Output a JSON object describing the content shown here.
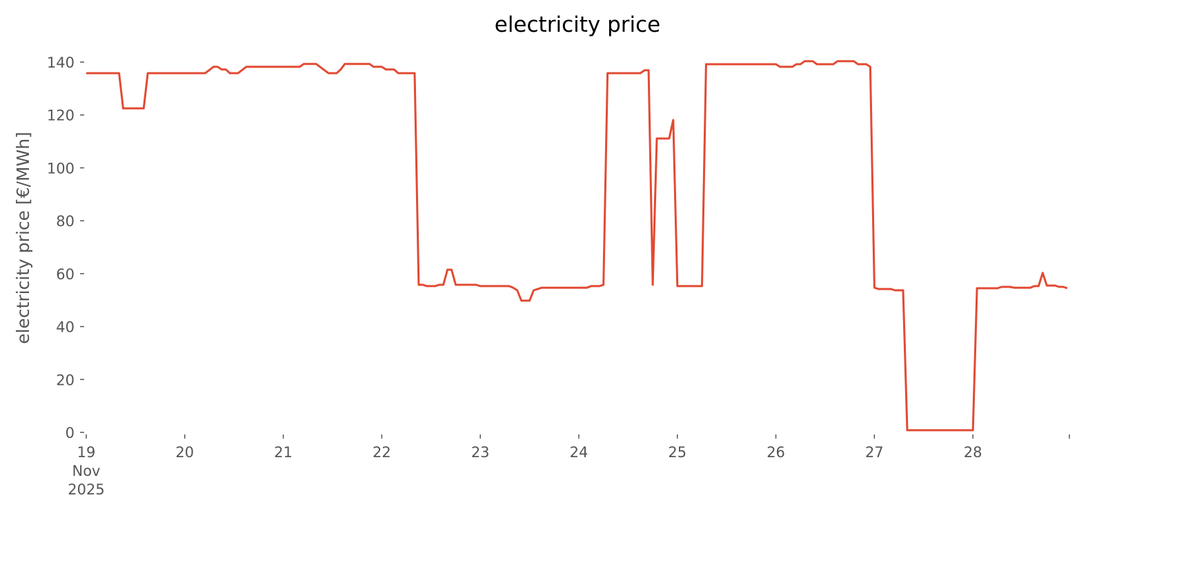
{
  "chart_data": {
    "type": "line",
    "title": "electricity price",
    "xlabel": "",
    "ylabel": "electricity price [€/MWh]",
    "ylim": [
      0,
      140
    ],
    "xlim": [
      "2025-11-19T00:00",
      "2025-11-28T23:00"
    ],
    "grid": false,
    "yticks": [
      "0",
      "20",
      "40",
      "60",
      "80",
      "100",
      "120",
      "140"
    ],
    "xticks": [
      {
        "date": "2025-11-19T00:00",
        "lines": [
          "19",
          "Nov",
          "2025"
        ]
      },
      {
        "date": "2025-11-20T00:00",
        "lines": [
          "20"
        ]
      },
      {
        "date": "2025-11-21T00:00",
        "lines": [
          "21"
        ]
      },
      {
        "date": "2025-11-22T00:00",
        "lines": [
          "22"
        ]
      },
      {
        "date": "2025-11-23T00:00",
        "lines": [
          "23"
        ]
      },
      {
        "date": "2025-11-24T00:00",
        "lines": [
          "24"
        ]
      },
      {
        "date": "2025-11-25T00:00",
        "lines": [
          "25"
        ]
      },
      {
        "date": "2025-11-26T00:00",
        "lines": [
          "26"
        ]
      },
      {
        "date": "2025-11-27T00:00",
        "lines": [
          "27"
        ]
      },
      {
        "date": "2025-11-28T00:00",
        "lines": [
          "28"
        ]
      }
    ],
    "series": [
      {
        "color": "#E24A33",
        "x": [
          "2025-11-19T00:00",
          "2025-11-19T08:00",
          "2025-11-19T09:00",
          "2025-11-19T14:00",
          "2025-11-19T15:00",
          "2025-11-20T05:00",
          "2025-11-20T07:00",
          "2025-11-20T08:00",
          "2025-11-20T09:00",
          "2025-11-20T10:00",
          "2025-11-20T11:00",
          "2025-11-20T13:00",
          "2025-11-20T15:00",
          "2025-11-21T04:00",
          "2025-11-21T05:00",
          "2025-11-21T08:00",
          "2025-11-21T11:00",
          "2025-11-21T13:00",
          "2025-11-21T14:00",
          "2025-11-21T15:00",
          "2025-11-21T21:00",
          "2025-11-21T22:00",
          "2025-11-22T00:00",
          "2025-11-22T01:00",
          "2025-11-22T03:00",
          "2025-11-22T04:00",
          "2025-11-22T08:00",
          "2025-11-22T09:00",
          "2025-11-22T10:00",
          "2025-11-22T11:00",
          "2025-11-22T13:00",
          "2025-11-22T14:00",
          "2025-11-22T15:00",
          "2025-11-22T16:00",
          "2025-11-22T17:00",
          "2025-11-22T18:00",
          "2025-11-22T23:00",
          "2025-11-23T00:00",
          "2025-11-23T07:00",
          "2025-11-23T08:00",
          "2025-11-23T09:00",
          "2025-11-23T10:00",
          "2025-11-23T12:00",
          "2025-11-23T13:00",
          "2025-11-23T14:00",
          "2025-11-23T15:00",
          "2025-11-24T02:00",
          "2025-11-24T03:00",
          "2025-11-24T05:00",
          "2025-11-24T06:00",
          "2025-11-24T07:00",
          "2025-11-24T15:00",
          "2025-11-24T16:00",
          "2025-11-24T17:00",
          "2025-11-24T18:00",
          "2025-11-24T19:00",
          "2025-11-24T22:00",
          "2025-11-24T23:00",
          "2025-11-25T00:00",
          "2025-11-25T06:00",
          "2025-11-25T07:00",
          "2025-11-26T00:00",
          "2025-11-26T01:00",
          "2025-11-26T04:00",
          "2025-11-26T05:00",
          "2025-11-26T06:00",
          "2025-11-26T07:00",
          "2025-11-26T09:00",
          "2025-11-26T10:00",
          "2025-11-26T14:00",
          "2025-11-26T15:00",
          "2025-11-26T19:00",
          "2025-11-26T20:00",
          "2025-11-26T22:00",
          "2025-11-26T23:00",
          "2025-11-27T00:00",
          "2025-11-27T01:00",
          "2025-11-27T04:00",
          "2025-11-27T05:00",
          "2025-11-27T07:00",
          "2025-11-27T08:00",
          "2025-11-28T00:00",
          "2025-11-28T01:00",
          "2025-11-28T06:00",
          "2025-11-28T07:00",
          "2025-11-28T09:00",
          "2025-11-28T10:00",
          "2025-11-28T14:00",
          "2025-11-28T15:00",
          "2025-11-28T16:00",
          "2025-11-28T17:00",
          "2025-11-28T18:00",
          "2025-11-28T20:00",
          "2025-11-28T21:00",
          "2025-11-28T22:00",
          "2025-11-28T23:00"
        ],
        "y": [
          135.8,
          135.8,
          122.5,
          122.5,
          135.8,
          135.8,
          138.2,
          138.2,
          137.2,
          137.2,
          135.8,
          135.8,
          138.2,
          138.2,
          139.3,
          139.3,
          135.8,
          135.8,
          137.2,
          139.3,
          139.3,
          138.2,
          138.2,
          137.2,
          137.2,
          135.8,
          135.8,
          55.8,
          55.8,
          55.3,
          55.3,
          55.8,
          55.8,
          61.5,
          61.5,
          55.8,
          55.8,
          55.3,
          55.3,
          54.7,
          53.7,
          49.8,
          49.8,
          53.7,
          54.2,
          54.7,
          54.7,
          55.3,
          55.3,
          55.8,
          135.8,
          135.8,
          136.9,
          136.9,
          55.8,
          111.1,
          111.1,
          118.1,
          55.3,
          55.3,
          139.2,
          139.2,
          138.2,
          138.2,
          139.2,
          139.2,
          140.3,
          140.3,
          139.2,
          139.2,
          140.3,
          140.3,
          139.2,
          139.2,
          138.2,
          54.7,
          54.2,
          54.2,
          53.7,
          53.7,
          0.8,
          0.8,
          54.5,
          54.5,
          55.0,
          55.0,
          54.7,
          54.7,
          55.3,
          55.3,
          60.3,
          55.5,
          55.5,
          55.0,
          55.0,
          54.5
        ]
      }
    ]
  }
}
